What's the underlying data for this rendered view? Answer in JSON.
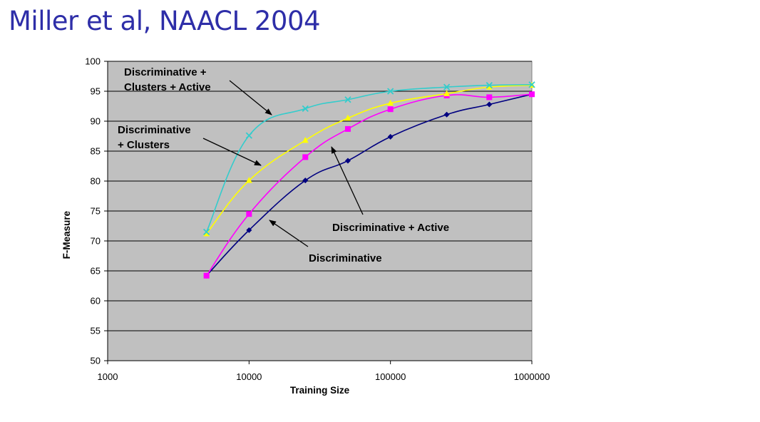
{
  "slide": {
    "title": "Miller et al, NAACL 2004"
  },
  "chart_data": {
    "type": "line",
    "xscale": "log",
    "xlim": [
      1000,
      1000000
    ],
    "ylim": [
      50,
      100
    ],
    "xlabel": "Training Size",
    "ylabel": "F-Measure",
    "xticks": [
      1000,
      10000,
      100000,
      1000000
    ],
    "xtick_labels": [
      "1000",
      "10000",
      "100000",
      "1000000"
    ],
    "yticks": [
      50,
      55,
      60,
      65,
      70,
      75,
      80,
      85,
      90,
      95,
      100
    ],
    "ytick_labels": [
      "50",
      "55",
      "60",
      "65",
      "70",
      "75",
      "80",
      "85",
      "90",
      "95",
      "100"
    ],
    "grid": "horizontal",
    "background": "#c0c0c0",
    "series": [
      {
        "name": "Discriminative",
        "color": "#000080",
        "marker": "diamond",
        "x": [
          5000,
          10000,
          25000,
          50000,
          100000,
          250000,
          500000,
          1000000
        ],
        "y": [
          64.2,
          71.8,
          80.1,
          83.4,
          87.4,
          91.1,
          92.8,
          94.5
        ]
      },
      {
        "name": "Discriminative + Active",
        "color": "#ff00ff",
        "marker": "square",
        "x": [
          5000,
          10000,
          25000,
          50000,
          100000,
          250000,
          500000,
          1000000
        ],
        "y": [
          64.2,
          74.5,
          84.0,
          88.7,
          92.0,
          94.3,
          94.0,
          94.5
        ]
      },
      {
        "name": "Discriminative + Clusters",
        "color": "#ffff00",
        "marker": "triangle",
        "x": [
          5000,
          10000,
          25000,
          50000,
          100000,
          250000,
          500000,
          1000000
        ],
        "y": [
          71.2,
          80.1,
          86.8,
          90.5,
          93.0,
          94.6,
          95.7,
          96.0
        ]
      },
      {
        "name": "Discriminative + Clusters + Active",
        "color": "#33cccc",
        "marker": "x",
        "x": [
          5000,
          10000,
          25000,
          50000,
          100000,
          250000,
          500000,
          1000000
        ],
        "y": [
          71.5,
          87.6,
          92.1,
          93.6,
          95.0,
          95.7,
          96.0,
          96.1
        ]
      }
    ],
    "annotations": [
      {
        "lines": [
          "Discriminative +",
          "Clusters + Active"
        ]
      },
      {
        "lines": [
          "Discriminative",
          "+ Clusters"
        ]
      },
      {
        "lines": [
          "Discriminative + Active"
        ]
      },
      {
        "lines": [
          "Discriminative"
        ]
      }
    ]
  }
}
